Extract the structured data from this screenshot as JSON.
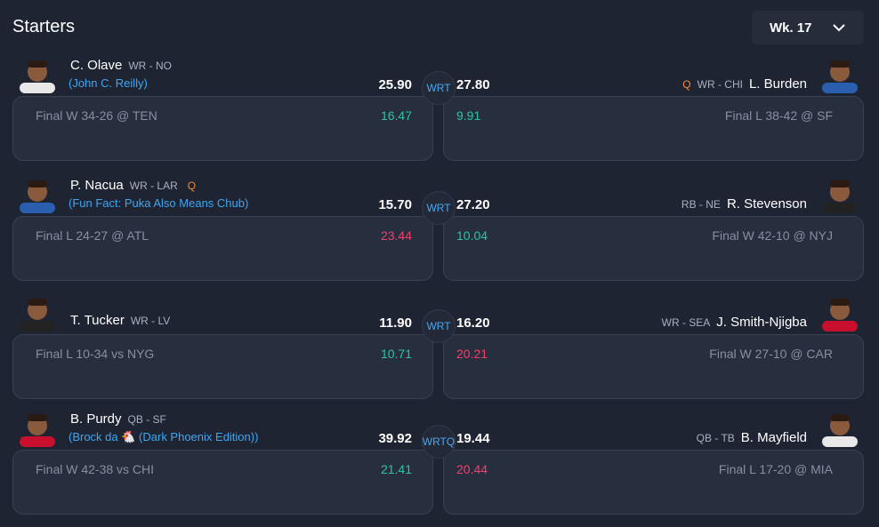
{
  "header": {
    "title": "Starters",
    "week": "Wk. 17"
  },
  "rows": [
    {
      "slot": "WRT",
      "left": {
        "name": "C. Olave",
        "pos": "WR - NO",
        "nickname": "(John C. Reilly)",
        "score": "25.90",
        "proj": "16.47",
        "proj_color": "#2ec4a0",
        "game": "Final W 34-26 @ TEN"
      },
      "right": {
        "name": "L. Burden",
        "pos": "WR - CHI",
        "injury": "Q",
        "score": "27.80",
        "proj": "9.91",
        "proj_color": "#2ec4a0",
        "game": "Final L 38-42 @ SF"
      }
    },
    {
      "slot": "WRT",
      "left": {
        "name": "P. Nacua",
        "pos": "WR - LAR",
        "injury": "Q",
        "nickname": "(Fun Fact: Puka Also Means Chub)",
        "score": "15.70",
        "proj": "23.44",
        "proj_color": "#f0406e",
        "game": "Final L 24-27 @ ATL"
      },
      "right": {
        "name": "R. Stevenson",
        "pos": "RB - NE",
        "score": "27.20",
        "proj": "10.04",
        "proj_color": "#2ec4a0",
        "game": "Final W 42-10 @ NYJ"
      }
    },
    {
      "slot": "WRT",
      "left": {
        "name": "T. Tucker",
        "pos": "WR - LV",
        "score": "11.90",
        "proj": "10.71",
        "proj_color": "#2ec4a0",
        "game": "Final L 10-34 vs NYG"
      },
      "right": {
        "name": "J. Smith-Njigba",
        "pos": "WR - SEA",
        "score": "16.20",
        "proj": "20.21",
        "proj_color": "#f0406e",
        "game": "Final W 27-10 @ CAR"
      }
    },
    {
      "slot": "WRTQ",
      "left": {
        "name": "B. Purdy",
        "pos": "QB - SF",
        "nickname": "(Brock da 🐔 (Dark Phoenix Edition))",
        "score": "39.92",
        "proj": "21.41",
        "proj_color": "#2ec4a0",
        "game": "Final W 42-38 vs CHI"
      },
      "right": {
        "name": "B. Mayfield",
        "pos": "QB - TB",
        "score": "19.44",
        "proj": "20.44",
        "proj_color": "#f0406e",
        "game": "Final L 17-20 @ MIA"
      }
    }
  ]
}
